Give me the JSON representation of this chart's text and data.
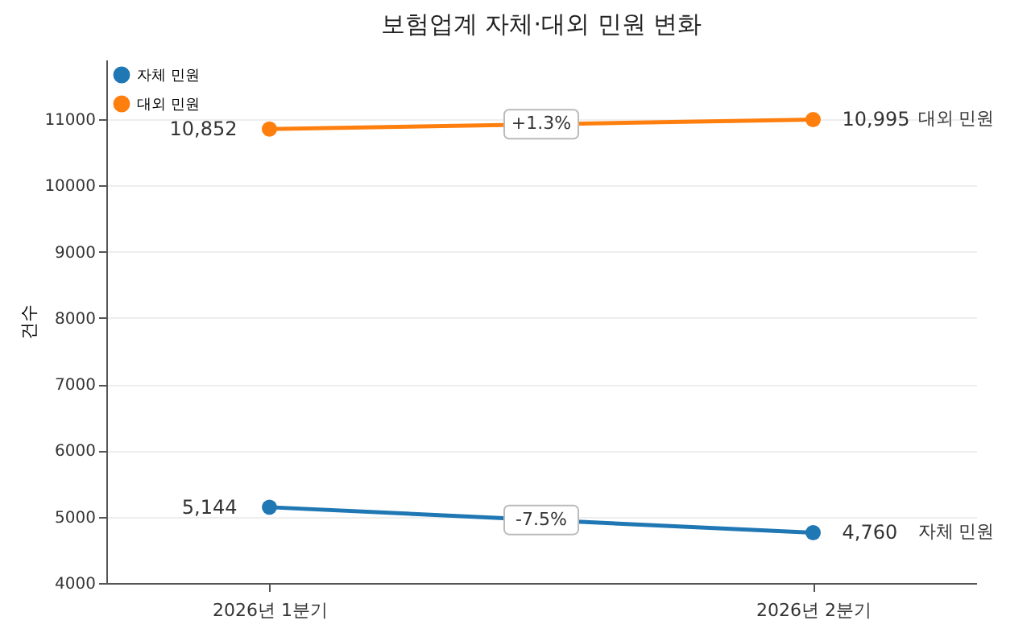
{
  "chart_data": {
    "type": "line",
    "title": "보험업계 자체·대외 민원 변화",
    "ylabel": "건수",
    "categories": [
      "2026년 1분기",
      "2026년 2분기"
    ],
    "series": [
      {
        "name": "자체 민원",
        "color": "#1f77b4",
        "values": [
          5144,
          4760
        ],
        "value_labels": [
          "5,144",
          "4,760"
        ]
      },
      {
        "name": "대외 민원",
        "color": "#ff7f0e",
        "values": [
          10852,
          10995
        ],
        "value_labels": [
          "10,852",
          "10,995"
        ]
      }
    ],
    "ylim": [
      4000,
      11900
    ],
    "yticks": [
      4000,
      5000,
      6000,
      7000,
      8000,
      9000,
      10000,
      11000
    ],
    "annotations": [
      {
        "text": "+1.3%",
        "y": 10924
      },
      {
        "text": "-7.5%",
        "y": 4952
      }
    ],
    "grid": "y",
    "legend": "top left",
    "marker": "circle",
    "line_style": "solid"
  }
}
